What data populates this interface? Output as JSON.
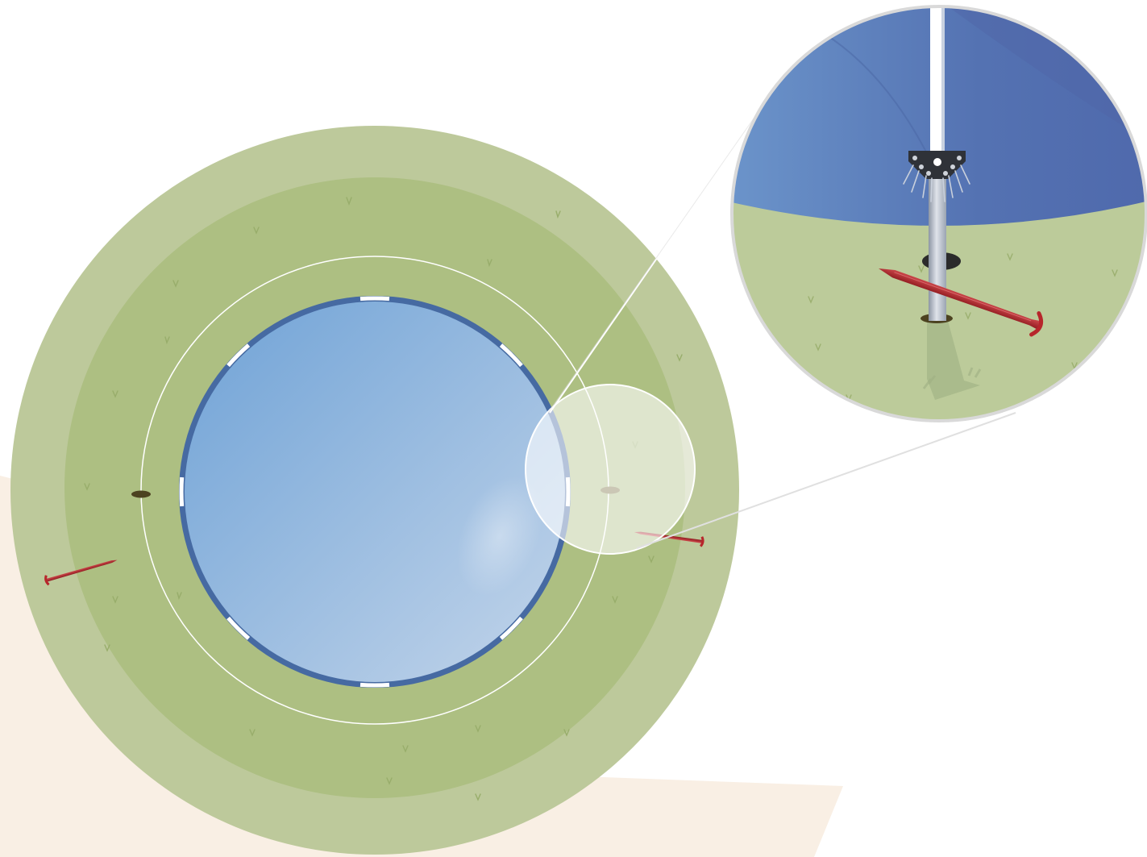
{
  "diagram": {
    "subject": "trampoline-ground-anchoring",
    "labels": [],
    "colors": {
      "background": "#ffffff",
      "shadow_floor": "#f9efe4",
      "lawn_outer": "#bdc99b",
      "lawn_inner": "#adbf82",
      "mat_light": "#c3d5ea",
      "mat_dark": "#6fa2d6",
      "frame_pad": "#466aa2",
      "pad_gap": "#ffffff",
      "stake": "#b7262b",
      "leg": "#aeb6c2",
      "bracket": "#2f3238",
      "zoom_sky": "#5472b2",
      "zoom_ground": "#bccb9a"
    },
    "elements": {
      "leg_holes": 2,
      "stakes": 2,
      "frame_pad_gaps": 8
    },
    "icons": [
      "zoom-callout",
      "ground-stake-icon",
      "leg-hole-icon",
      "mounting-bracket-icon"
    ]
  }
}
